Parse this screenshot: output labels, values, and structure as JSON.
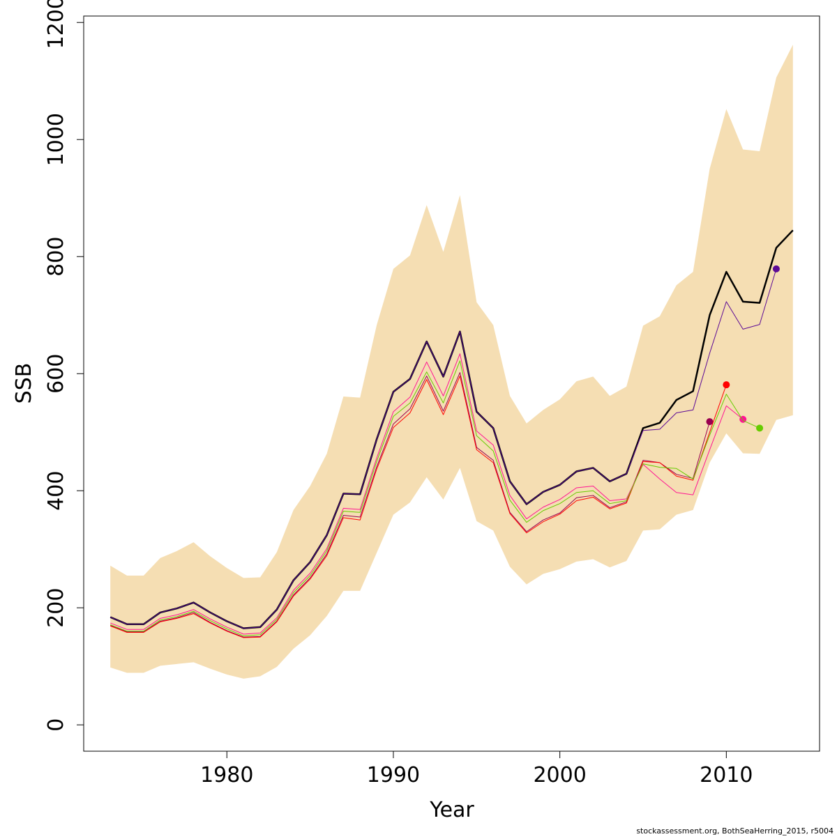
{
  "chart_data": {
    "type": "line",
    "xlabel": "Year",
    "ylabel": "SSB",
    "footnote": "stockassessment.org, BothSeaHerring_2015, r5004",
    "x": [
      1973,
      1974,
      1975,
      1976,
      1977,
      1978,
      1979,
      1980,
      1981,
      1982,
      1983,
      1984,
      1985,
      1986,
      1987,
      1988,
      1989,
      1990,
      1991,
      1992,
      1993,
      1994,
      1995,
      1996,
      1997,
      1998,
      1999,
      2000,
      2001,
      2002,
      2003,
      2004,
      2005,
      2006,
      2007,
      2008,
      2009,
      2010,
      2011,
      2012,
      2013,
      2014
    ],
    "xlim": [
      1971.4,
      2015.6
    ],
    "xticks": [
      1980,
      1990,
      2000,
      2010
    ],
    "ylim": [
      -45,
      1211
    ],
    "yticks": [
      0,
      200,
      400,
      600,
      800,
      1000,
      1200
    ],
    "band": {
      "color": "#f5deb3",
      "upper": [
        272,
        255,
        255,
        285,
        297,
        312,
        288,
        268,
        251,
        252,
        295,
        367,
        408,
        463,
        561,
        559,
        683,
        779,
        802,
        888,
        808,
        905,
        722,
        683,
        562,
        515,
        538,
        556,
        587,
        595,
        562,
        578,
        682,
        698,
        751,
        774,
        950,
        1052,
        983,
        980,
        1106,
        1162
      ],
      "lower": [
        98,
        89,
        89,
        101,
        104,
        107,
        96,
        86,
        79,
        83,
        99,
        130,
        153,
        186,
        229,
        229,
        294,
        359,
        380,
        423,
        385,
        439,
        348,
        332,
        270,
        240,
        258,
        266,
        279,
        283,
        269,
        280,
        332,
        334,
        359,
        367,
        448,
        498,
        464,
        463,
        521,
        529
      ]
    },
    "series": [
      {
        "color": "#990050",
        "width": 1,
        "endpoint": true,
        "values": [
          170,
          159,
          159,
          177,
          183,
          192,
          175,
          161,
          150,
          151,
          177,
          222,
          251,
          292,
          358,
          355,
          441,
          514,
          540,
          596,
          536,
          602,
          474,
          452,
          363,
          330,
          350,
          362,
          388,
          392,
          371,
          381,
          452,
          448,
          428,
          421,
          518,
          null,
          null,
          null,
          null,
          null
        ]
      },
      {
        "color": "#ff0000",
        "width": 1,
        "endpoint": true,
        "values": [
          169,
          158,
          158,
          176,
          182,
          190,
          174,
          160,
          149,
          150,
          176,
          220,
          249,
          289,
          354,
          350,
          437,
          508,
          533,
          590,
          530,
          596,
          470,
          448,
          361,
          328,
          347,
          360,
          383,
          389,
          369,
          379,
          450,
          448,
          425,
          418,
          500,
          581,
          null,
          null,
          null,
          null
        ]
      },
      {
        "color": "#ff1493",
        "width": 1,
        "endpoint": true,
        "values": [
          174,
          163,
          163,
          182,
          188,
          197,
          181,
          167,
          155,
          157,
          183,
          230,
          259,
          301,
          370,
          368,
          456,
          535,
          560,
          620,
          562,
          634,
          502,
          478,
          392,
          352,
          372,
          385,
          405,
          408,
          383,
          386,
          445,
          420,
          397,
          393,
          470,
          545,
          522,
          null,
          null,
          null
        ]
      },
      {
        "color": "#66cc00",
        "width": 1,
        "endpoint": true,
        "values": [
          171,
          160,
          160,
          179,
          185,
          194,
          178,
          164,
          152,
          154,
          180,
          226,
          255,
          297,
          365,
          363,
          450,
          527,
          550,
          603,
          550,
          622,
          494,
          468,
          384,
          346,
          366,
          378,
          397,
          400,
          378,
          383,
          446,
          440,
          438,
          420,
          495,
          565,
          520,
          507,
          null,
          null
        ]
      },
      {
        "color": "#000000",
        "width": 2.5,
        "endpoint": false,
        "values": [
          184,
          172,
          172,
          192,
          199,
          209,
          192,
          177,
          165,
          167,
          197,
          247,
          278,
          324,
          395,
          394,
          488,
          569,
          591,
          655,
          595,
          672,
          535,
          507,
          416,
          377,
          398,
          410,
          433,
          439,
          416,
          429,
          507,
          516,
          555,
          570,
          700,
          774,
          723,
          721,
          815,
          845
        ]
      },
      {
        "color": "#5c0a96",
        "width": 1,
        "endpoint": true,
        "values": [
          184,
          172,
          172,
          192,
          199,
          209,
          192,
          177,
          165,
          167,
          197,
          247,
          278,
          324,
          395,
          394,
          488,
          569,
          591,
          655,
          595,
          672,
          535,
          507,
          416,
          377,
          398,
          410,
          433,
          439,
          416,
          429,
          503,
          505,
          533,
          538,
          635,
          723,
          676,
          684,
          779,
          null
        ]
      }
    ]
  }
}
